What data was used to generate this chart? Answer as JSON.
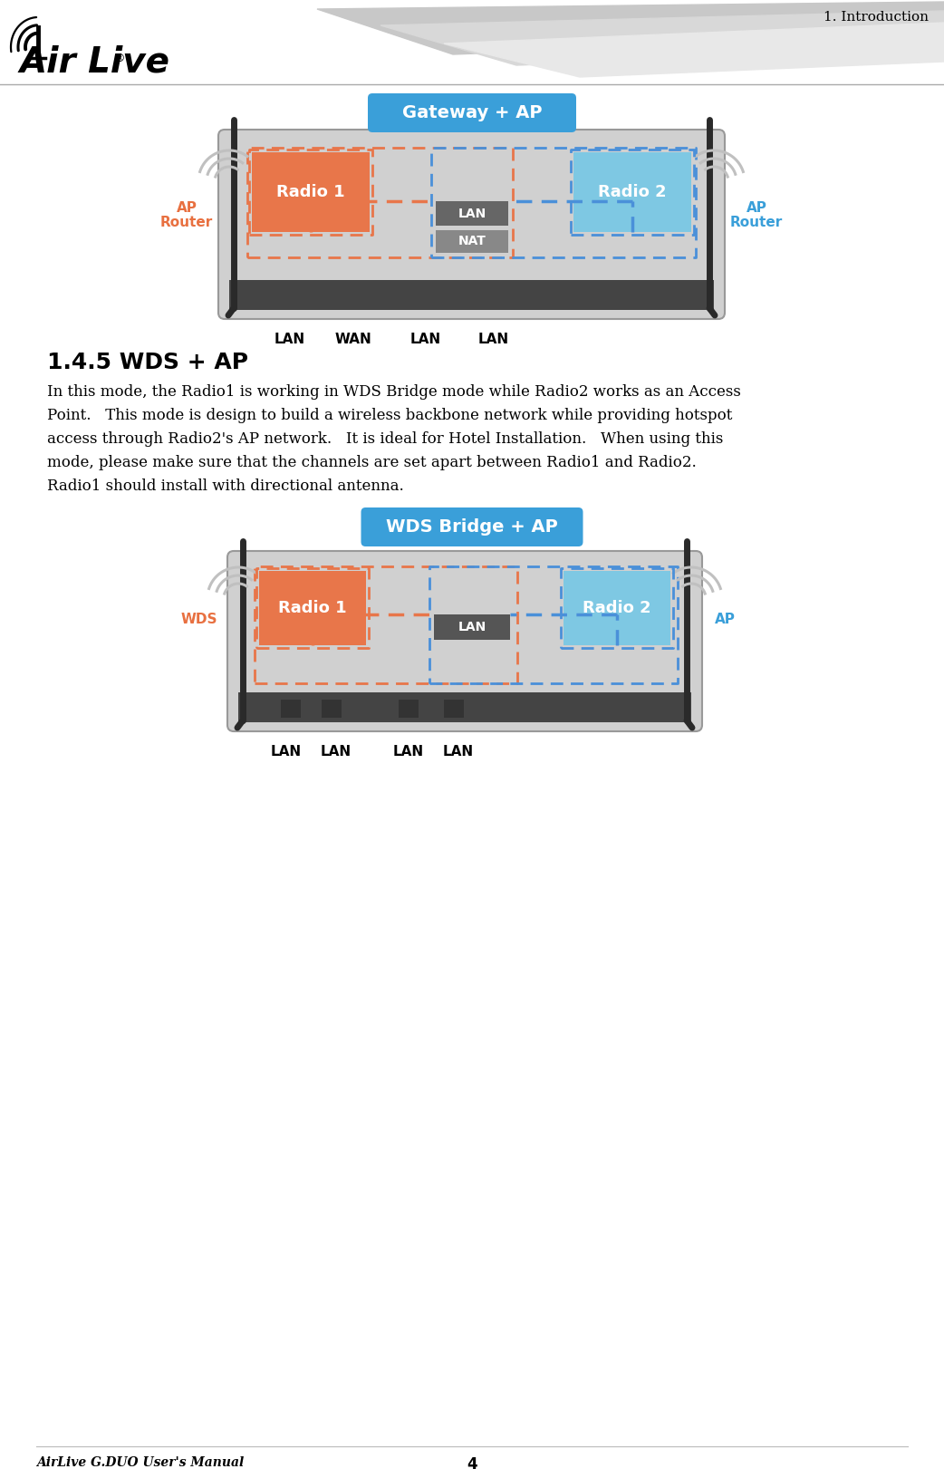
{
  "page_title": "1. Introduction",
  "footer_left": "AirLive G.DUO User's Manual",
  "footer_page": "4",
  "section_title": "1.4.5 WDS + AP",
  "body_text": "In this mode, the Radio1 is working in WDS Bridge mode while Radio2 works as an Access\nPoint.   This mode is design to build a wireless backbone network while providing hotspot\naccess through Radio2's AP network.   It is ideal for Hotel Installation.   When using this\nmode, please make sure that the channels are set apart between Radio1 and Radio2.\nRadio1 should install with directional antenna.",
  "diagram1_title": "Gateway + AP",
  "diagram1_radio1_label": "Radio 1",
  "diagram1_radio2_label": "Radio 2",
  "diagram1_lan_label": "LAN",
  "diagram1_nat_label": "NAT",
  "diagram1_left_label1": "AP",
  "diagram1_left_label2": "Router",
  "diagram1_right_label1": "AP",
  "diagram1_right_label2": "Router",
  "diagram1_bottom_labels": [
    "LAN",
    "WAN",
    "LAN",
    "LAN"
  ],
  "diagram2_title": "WDS Bridge + AP",
  "diagram2_radio1_label": "Radio 1",
  "diagram2_radio2_label": "Radio 2",
  "diagram2_lan_label": "LAN",
  "diagram2_left_label": "WDS",
  "diagram2_right_label": "AP",
  "diagram2_bottom_labels": [
    "LAN",
    "LAN",
    "LAN",
    "LAN"
  ],
  "color_radio1": "#E8764A",
  "color_radio2": "#7EC8E3",
  "color_device_bg": "#D0D0D0",
  "color_orange_border": "#E8764A",
  "color_blue_border": "#4A90D9",
  "color_title_bg": "#3A9FD9",
  "color_bottom_bar": "#444444",
  "color_ap_router_orange": "#E87040",
  "color_ap_blue": "#3A9FD9",
  "bg_color": "#FFFFFF"
}
